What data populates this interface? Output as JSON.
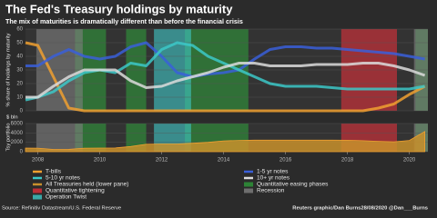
{
  "title": "The Fed's Treasury holdings by maturity",
  "subtitle": "The mix of maturities is dramatically different than before the financial crisis",
  "source": "Source: Refinitiv Datastream/U.S. Federal Reserve",
  "credit": "Reuters graphic/Dan Burns28/08/2020 @Dan___Burns",
  "chart_data": [
    {
      "type": "line",
      "ylabel": "% share of holdings by maturity",
      "xlim": [
        2007.6,
        2020.6
      ],
      "ylim": [
        0,
        60
      ],
      "yticks": [
        0,
        10,
        20,
        30,
        40,
        50,
        60
      ],
      "x": [
        2007.6,
        2008,
        2008.5,
        2009,
        2009.5,
        2010,
        2010.5,
        2011,
        2011.5,
        2012,
        2012.5,
        2013,
        2013.5,
        2014,
        2014.5,
        2015,
        2015.5,
        2016,
        2016.5,
        2017,
        2017.5,
        2018,
        2018.5,
        2019,
        2019.5,
        2020,
        2020.5
      ],
      "series": [
        {
          "name": "T-bills",
          "color": "#f0a030",
          "values": [
            50,
            48,
            25,
            2,
            0,
            0,
            0,
            0,
            0,
            0,
            0,
            0,
            0,
            0,
            0,
            0,
            0,
            0,
            0,
            0,
            0,
            0,
            0,
            2,
            5,
            12,
            18
          ]
        },
        {
          "name": "1-5 yr notes",
          "color": "#3a5fd9",
          "values": [
            33,
            33,
            40,
            45,
            40,
            38,
            40,
            47,
            50,
            40,
            28,
            25,
            27,
            28,
            30,
            38,
            45,
            47,
            47,
            46,
            46,
            45,
            44,
            43,
            42,
            40,
            38
          ]
        },
        {
          "name": "5-10 yr notes",
          "color": "#3cc8c8",
          "values": [
            8,
            10,
            14,
            22,
            28,
            30,
            28,
            35,
            33,
            45,
            50,
            48,
            40,
            35,
            30,
            25,
            20,
            18,
            18,
            18,
            17,
            16,
            16,
            16,
            16,
            16,
            18
          ]
        },
        {
          "name": "10+ yr notes",
          "color": "#dcdcdc",
          "values": [
            10,
            10,
            18,
            25,
            30,
            30,
            30,
            22,
            17,
            18,
            22,
            25,
            28,
            32,
            35,
            35,
            33,
            33,
            33,
            34,
            34,
            34,
            35,
            35,
            33,
            30,
            26
          ]
        }
      ],
      "shading": [
        {
          "name": "Quantitative easing phases",
          "color": "#2e9a3a",
          "ranges": [
            [
              2009.2,
              2010.2
            ],
            [
              2010.85,
              2011.5
            ],
            [
              2012.75,
              2014.8
            ],
            [
              2020.2,
              2020.6
            ]
          ]
        },
        {
          "name": "Quantitative tightening",
          "color": "#e0303a",
          "ranges": [
            [
              2017.8,
              2019.6
            ]
          ]
        },
        {
          "name": "Operation Twist",
          "color": "#40c8c8",
          "ranges": [
            [
              2011.75,
              2012.95
            ]
          ]
        },
        {
          "name": "Recession",
          "color": "#808080",
          "ranges": [
            [
              2007.95,
              2009.45
            ],
            [
              2020.15,
              2020.6
            ]
          ]
        }
      ]
    },
    {
      "type": "area",
      "ylabel": "Tsy portfolio",
      "unit": "$ bln",
      "xlim": [
        2007.6,
        2020.6
      ],
      "ylim": [
        0,
        6000
      ],
      "yticks": [
        0,
        2000,
        4000,
        6000
      ],
      "xticks": [
        2008,
        2010,
        2012,
        2014,
        2016,
        2018,
        2020
      ],
      "x": [
        2007.6,
        2008,
        2008.5,
        2009,
        2009.5,
        2010,
        2010.5,
        2011,
        2011.5,
        2012,
        2012.5,
        2013,
        2013.5,
        2014,
        2014.5,
        2015,
        2015.5,
        2016,
        2016.5,
        2017,
        2017.5,
        2018,
        2018.5,
        2019,
        2019.5,
        2020,
        2020.5
      ],
      "series": [
        {
          "name": "All Treasuries held (lower pane)",
          "color": "#c8902c",
          "values": [
            780,
            750,
            480,
            500,
            750,
            780,
            800,
            1100,
            1600,
            1650,
            1650,
            1800,
            2000,
            2300,
            2400,
            2460,
            2460,
            2460,
            2460,
            2460,
            2460,
            2440,
            2350,
            2200,
            2100,
            2400,
            4300
          ]
        }
      ]
    }
  ]
}
